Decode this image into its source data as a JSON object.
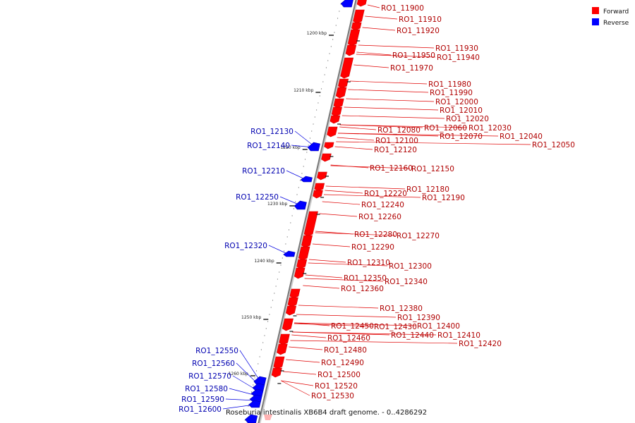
{
  "legend": [
    {
      "label": "Forward",
      "color": "#ff0000"
    },
    {
      "label": "Reverse",
      "color": "#0000ff"
    }
  ],
  "caption": "Roseburia intestinalis XB6B4 draft genome. - 0..4286292",
  "scale_ticks": [
    "1200 kbp",
    "1210 kbp",
    "1220 kbp",
    "1230 kbp",
    "1240 kbp",
    "1250 kbp",
    "1260 kbp"
  ],
  "forward_genes": [
    "RO1_11900",
    "RO1_11910",
    "RO1_11920",
    "RO1_11930",
    "RO1_11940",
    "RO1_11950",
    "RO1_11970",
    "RO1_11980",
    "RO1_11990",
    "RO1_12000",
    "RO1_12010",
    "RO1_12020",
    "RO1_12030",
    "RO1_12040",
    "RO1_12050",
    "RO1_12060",
    "RO1_12070",
    "RO1_12080",
    "RO1_12100",
    "RO1_12120",
    "RO1_12150",
    "RO1_12160",
    "RO1_12180",
    "RO1_12190",
    "RO1_12220",
    "RO1_12240",
    "RO1_12260",
    "RO1_12270",
    "RO1_12280",
    "RO1_12290",
    "RO1_12300",
    "RO1_12310",
    "RO1_12340",
    "RO1_12350",
    "RO1_12360",
    "RO1_12380",
    "RO1_12390",
    "RO1_12400",
    "RO1_12410",
    "RO1_12420",
    "RO1_12430",
    "RO1_12440",
    "RO1_12450",
    "RO1_12460",
    "RO1_12480",
    "RO1_12490",
    "RO1_12500",
    "RO1_12520",
    "RO1_12530"
  ],
  "reverse_genes": [
    "RO1_12130",
    "RO1_12140",
    "RO1_12210",
    "RO1_12250",
    "RO1_12320",
    "RO1_12550",
    "RO1_12560",
    "RO1_12570",
    "RO1_12580",
    "RO1_12590",
    "RO1_12600"
  ]
}
